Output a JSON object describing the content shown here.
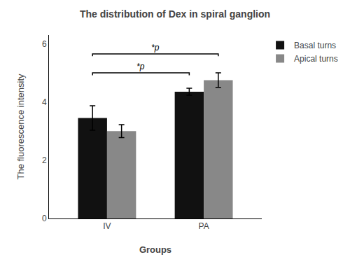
{
  "chart_data": {
    "type": "bar",
    "title": "The distribution of Dex in spiral ganglion",
    "xlabel": "Groups",
    "ylabel": "The fluorescence intensity",
    "categories": [
      "IV",
      "PA"
    ],
    "series": [
      {
        "name": "Basal turns",
        "color": "#111111",
        "values": [
          3.45,
          4.35
        ],
        "errors": [
          0.42,
          0.12
        ]
      },
      {
        "name": "Apical turns",
        "color": "#888888",
        "values": [
          3.0,
          4.75
        ],
        "errors": [
          0.22,
          0.25
        ]
      }
    ],
    "ylim": [
      0,
      6.3
    ],
    "yticks": [
      0,
      2,
      4,
      6
    ],
    "grid": false,
    "legend": "right",
    "annotations": [
      {
        "text": "*p",
        "y": 5.0,
        "from": {
          "category": "IV",
          "series": "Basal turns"
        },
        "to": {
          "category": "PA",
          "series": "Basal turns"
        }
      },
      {
        "text": "*p",
        "y": 5.65,
        "from": {
          "category": "IV",
          "series": "Basal turns"
        },
        "to": {
          "category": "PA",
          "series": "Apical turns"
        }
      }
    ]
  }
}
